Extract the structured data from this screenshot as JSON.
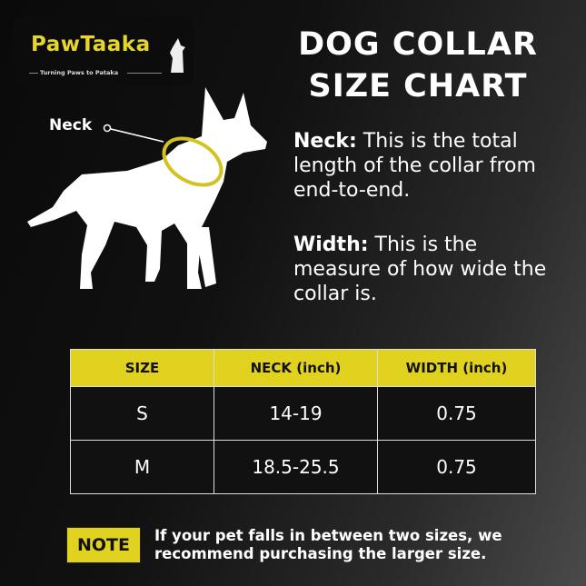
{
  "logo": {
    "brand": "PawTaaka",
    "tagline": "Turning Paws to Pataka"
  },
  "title": {
    "line1": "DOG COLLAR",
    "line2": "SIZE CHART"
  },
  "diagram": {
    "neck_label": "Neck",
    "collar_color": "#d4c21e"
  },
  "definitions": [
    {
      "term": "Neck:",
      "text": " This is the total length of the collar from end-to-end."
    },
    {
      "term": "Width:",
      "text": " This is the measure of how wide the collar is."
    }
  ],
  "table": {
    "headers": [
      "SIZE",
      "NECK (inch)",
      "WIDTH (inch)"
    ],
    "rows": [
      [
        "S",
        "14-19",
        "0.75"
      ],
      [
        "M",
        "18.5-25.5",
        "0.75"
      ]
    ]
  },
  "note": {
    "badge": "NOTE",
    "text": "If your pet falls in between two sizes, we recommend purchasing the larger size."
  },
  "colors": {
    "accent": "#e0d21e",
    "background": "#111111"
  }
}
